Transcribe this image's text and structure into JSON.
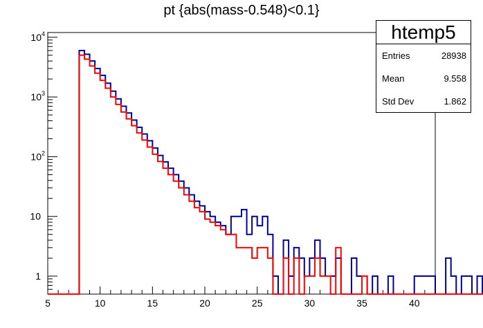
{
  "chart_data": {
    "type": "histogram",
    "title": "pt {abs(mass-0.548)<0.1}",
    "xlim": [
      5,
      42
    ],
    "ylim": [
      0.5,
      12000
    ],
    "yscale": "log",
    "bin_width": 0.5,
    "x_tick_labels": [
      "5",
      "10",
      "15",
      "20",
      "25",
      "30",
      "35",
      "40"
    ],
    "y_tick_labels": [
      {
        "value": 1,
        "base": "1",
        "exp": ""
      },
      {
        "value": 10,
        "base": "10",
        "exp": ""
      },
      {
        "value": 100,
        "base": "10",
        "exp": "2"
      },
      {
        "value": 1000,
        "base": "10",
        "exp": "3"
      },
      {
        "value": 10000,
        "base": "10",
        "exp": "4"
      }
    ],
    "series": [
      {
        "color": "#000099",
        "x_start": 5,
        "values": [
          0,
          0,
          0,
          0,
          0,
          0,
          6000,
          5200,
          4000,
          3000,
          2300,
          1700,
          1250,
          930,
          700,
          540,
          410,
          310,
          240,
          185,
          140,
          105,
          82,
          64,
          50,
          39,
          30,
          23,
          18,
          15,
          12,
          10,
          8,
          7,
          5,
          10,
          10,
          13,
          5,
          10,
          7,
          10,
          5,
          1,
          0,
          4,
          1,
          3,
          2,
          1,
          2,
          4,
          2,
          1,
          1,
          2,
          0,
          0,
          2,
          1,
          1,
          0,
          1,
          0,
          0,
          1,
          0,
          0,
          0,
          0,
          1,
          1,
          1,
          1,
          0,
          0,
          2,
          1,
          0,
          1,
          1,
          0,
          1,
          0,
          0,
          0,
          0,
          0,
          0,
          0,
          0,
          0,
          0,
          0
        ]
      },
      {
        "color": "#ff0000",
        "x_start": 5,
        "values": [
          0,
          0,
          0,
          0,
          0,
          0,
          5000,
          4300,
          3300,
          2500,
          1900,
          1400,
          1000,
          750,
          560,
          430,
          330,
          250,
          190,
          145,
          110,
          83,
          64,
          50,
          39,
          30,
          23,
          18,
          14,
          12,
          9,
          8,
          7,
          6,
          5,
          5,
          3,
          3,
          3,
          2,
          3,
          3,
          2,
          0,
          0,
          2,
          0,
          2,
          0,
          1,
          1,
          2,
          1,
          1,
          0,
          3,
          0,
          0,
          0,
          0,
          1,
          0,
          0,
          0,
          0,
          0,
          0,
          0,
          0,
          0,
          0,
          0,
          0,
          0,
          0,
          0,
          0,
          0,
          0,
          0,
          0,
          0,
          0,
          0,
          0,
          0,
          0,
          0,
          0,
          0,
          0,
          0,
          0,
          0
        ]
      }
    ]
  },
  "stats": {
    "title": "htemp5",
    "rows": [
      {
        "label": "Entries",
        "value": "28938"
      },
      {
        "label": "Mean",
        "value": "9.558"
      },
      {
        "label": "Std Dev",
        "value": "1.862"
      }
    ]
  }
}
